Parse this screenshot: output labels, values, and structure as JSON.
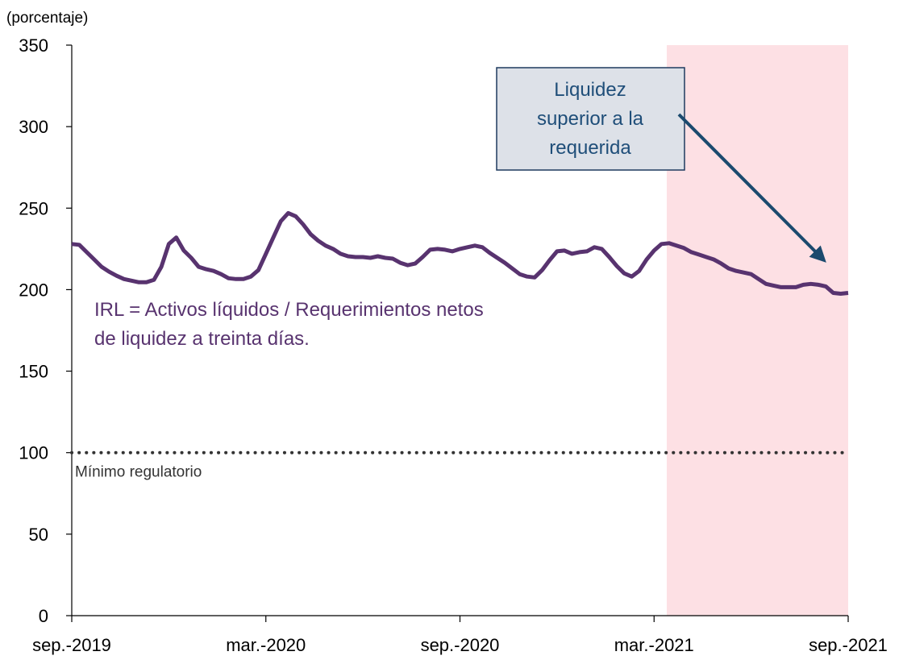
{
  "chart_data": {
    "type": "line",
    "y_axis_label": "(porcentaje)",
    "categories": [
      "sep.-2019",
      null,
      null,
      null,
      null,
      null,
      null,
      null,
      null,
      null,
      null,
      null,
      null,
      null,
      null,
      null,
      null,
      null,
      null,
      null,
      null,
      null,
      null,
      null,
      null,
      null,
      "mar.-2020",
      null,
      null,
      null,
      null,
      null,
      null,
      null,
      null,
      null,
      null,
      null,
      null,
      null,
      null,
      null,
      null,
      null,
      null,
      null,
      null,
      null,
      null,
      null,
      null,
      null,
      "sep.-2020",
      null,
      null,
      null,
      null,
      null,
      null,
      null,
      null,
      null,
      null,
      null,
      null,
      null,
      null,
      null,
      null,
      null,
      null,
      null,
      null,
      null,
      null,
      null,
      null,
      null,
      "mar.-2021",
      null,
      null,
      null,
      null,
      null,
      null,
      null,
      null,
      null,
      null,
      null,
      null,
      null,
      null,
      null,
      null,
      null,
      null,
      null,
      null,
      null,
      null,
      null,
      null,
      null,
      "sep.-2021"
    ],
    "values": [
      228,
      227.5,
      223,
      218.5,
      214,
      211,
      208.5,
      206.5,
      205.5,
      204.5,
      204.5,
      206,
      214,
      228,
      232,
      224,
      219.5,
      214,
      212.5,
      211.5,
      209.5,
      207,
      206.5,
      206.5,
      208,
      212,
      222,
      232,
      242,
      247,
      245,
      240,
      234,
      230,
      227,
      225,
      222,
      220.5,
      220,
      220,
      219.5,
      220.5,
      219.5,
      219,
      216.5,
      215,
      216,
      220,
      224.5,
      225,
      224.5,
      223.5,
      225,
      226,
      227,
      226,
      222.5,
      219.5,
      216.5,
      213,
      209.5,
      208,
      207.5,
      212,
      218,
      223.5,
      224,
      222,
      223,
      223.5,
      226,
      225,
      220,
      214.5,
      210,
      208,
      211.5,
      218.5,
      224,
      228,
      228.5,
      227,
      225.5,
      223,
      221.5,
      220,
      218.5,
      216,
      213,
      211.5,
      210.5,
      209.5,
      206.5,
      203.5,
      202.5,
      201.5,
      201.5,
      201.5,
      203,
      203.5,
      203,
      202,
      198,
      197.5,
      198
    ],
    "color": "#58336f",
    "ylim": [
      0,
      350
    ],
    "yticks": [
      0,
      50,
      100,
      150,
      200,
      250,
      300,
      350
    ],
    "shaded_range": [
      79.7,
      104
    ],
    "shade_color": "#fde0e4",
    "reference_lines": [
      {
        "value": 100,
        "label": "Mínimo regulatorio"
      }
    ],
    "annotations": {
      "formula": [
        "IRL = Activos líquidos / Requerimientos netos",
        "de liquidez a treinta días."
      ],
      "callout": [
        "Liquidez",
        "superior a la",
        "requerida"
      ]
    }
  }
}
